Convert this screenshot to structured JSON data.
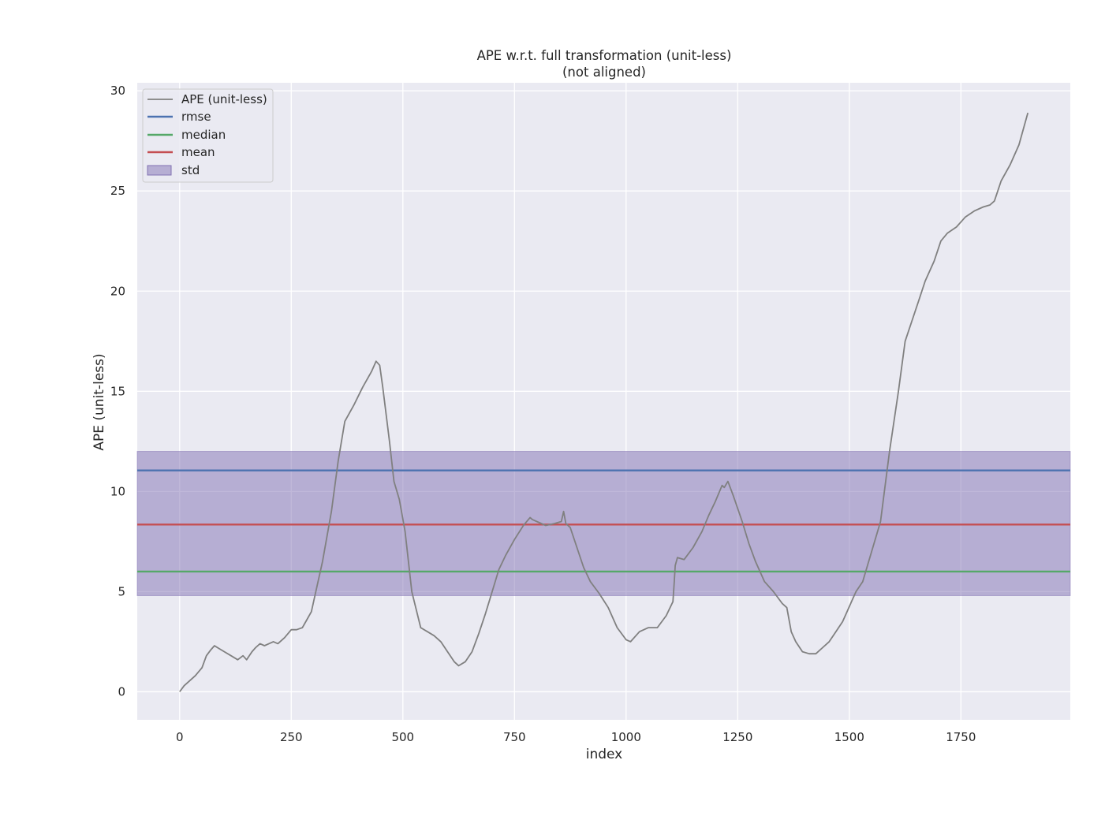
{
  "chart_data": {
    "type": "line",
    "title": "APE w.r.t. full transformation (unit-less)",
    "subtitle": "(not aligned)",
    "xlabel": "index",
    "ylabel": "APE (unit-less)",
    "xlim": [
      -95,
      1995
    ],
    "ylim": [
      -1.4,
      30.4
    ],
    "xticks": [
      0,
      250,
      500,
      750,
      1000,
      1250,
      1500,
      1750
    ],
    "yticks": [
      0,
      5,
      10,
      15,
      20,
      25,
      30
    ],
    "grid": true,
    "legend_position": "top-left",
    "colors": {
      "ape": "#808080",
      "rmse": "#4c72b0",
      "median": "#55a868",
      "mean": "#c44e52",
      "std": "#8172b3",
      "plot_bg": "#eaeaf2",
      "grid": "#ffffff"
    },
    "legend": [
      "APE (unit-less)",
      "rmse",
      "median",
      "mean",
      "std"
    ],
    "stats": {
      "rmse": 11.05,
      "median": 6.0,
      "mean": 8.35,
      "std_band": [
        4.8,
        12.0
      ]
    },
    "series": [
      {
        "name": "APE (unit-less)",
        "x": [
          0,
          10,
          20,
          35,
          50,
          60,
          70,
          78,
          85,
          100,
          115,
          130,
          142,
          150,
          162,
          170,
          180,
          190,
          200,
          210,
          220,
          235,
          250,
          262,
          275,
          285,
          295,
          305,
          320,
          340,
          355,
          370,
          390,
          410,
          430,
          440,
          448,
          455,
          470,
          480,
          492,
          505,
          520,
          540,
          555,
          570,
          585,
          600,
          615,
          625,
          640,
          655,
          670,
          685,
          700,
          715,
          730,
          750,
          770,
          785,
          790,
          800,
          820,
          840,
          855,
          860,
          865,
          875,
          890,
          905,
          920,
          940,
          960,
          980,
          1000,
          1010,
          1030,
          1050,
          1070,
          1090,
          1105,
          1108,
          1110,
          1115,
          1130,
          1150,
          1170,
          1185,
          1200,
          1215,
          1220,
          1228,
          1240,
          1260,
          1275,
          1290,
          1310,
          1330,
          1350,
          1360,
          1370,
          1380,
          1395,
          1410,
          1425,
          1440,
          1455,
          1470,
          1485,
          1495,
          1505,
          1515,
          1530,
          1550,
          1570,
          1590,
          1610,
          1625,
          1640,
          1655,
          1670,
          1690,
          1705,
          1720,
          1740,
          1760,
          1780,
          1800,
          1815,
          1825,
          1840,
          1860,
          1880,
          1900
        ],
        "values": [
          0.0,
          0.3,
          0.5,
          0.8,
          1.2,
          1.8,
          2.1,
          2.3,
          2.2,
          2.0,
          1.8,
          1.6,
          1.8,
          1.6,
          2.0,
          2.2,
          2.4,
          2.3,
          2.4,
          2.5,
          2.4,
          2.7,
          3.1,
          3.1,
          3.2,
          3.6,
          4.0,
          5.0,
          6.5,
          9.0,
          11.5,
          13.5,
          14.3,
          15.2,
          16.0,
          16.5,
          16.3,
          15.2,
          12.5,
          10.5,
          9.6,
          8.0,
          5.0,
          3.2,
          3.0,
          2.8,
          2.5,
          2.0,
          1.5,
          1.3,
          1.5,
          2.0,
          2.9,
          3.9,
          5.0,
          6.1,
          6.8,
          7.6,
          8.3,
          8.7,
          8.6,
          8.5,
          8.3,
          8.4,
          8.5,
          9.0,
          8.4,
          8.2,
          7.2,
          6.2,
          5.5,
          4.9,
          4.2,
          3.2,
          2.6,
          2.5,
          3.0,
          3.2,
          3.2,
          3.8,
          4.5,
          5.5,
          6.3,
          6.7,
          6.6,
          7.2,
          8.0,
          8.8,
          9.5,
          10.3,
          10.2,
          10.5,
          9.8,
          8.5,
          7.4,
          6.5,
          5.5,
          5.0,
          4.4,
          4.2,
          3.0,
          2.5,
          2.0,
          1.9,
          1.9,
          2.2,
          2.5,
          3.0,
          3.5,
          4.0,
          4.5,
          5.0,
          5.5,
          7.0,
          8.5,
          12.0,
          15.0,
          17.5,
          18.5,
          19.5,
          20.5,
          21.5,
          22.5,
          22.9,
          23.2,
          23.7,
          24.0,
          24.2,
          24.3,
          24.5,
          25.5,
          26.3,
          27.3,
          28.9
        ]
      }
    ]
  }
}
